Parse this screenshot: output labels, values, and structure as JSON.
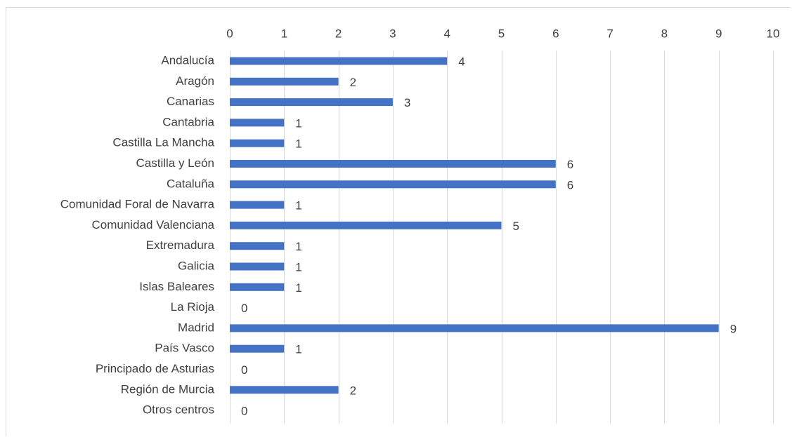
{
  "chart_data": {
    "type": "bar",
    "orientation": "horizontal",
    "title": "",
    "xlabel": "",
    "ylabel": "",
    "xlim": [
      0,
      10
    ],
    "x_ticks": [
      0,
      1,
      2,
      3,
      4,
      5,
      6,
      7,
      8,
      9,
      10
    ],
    "x_axis_position": "top",
    "grid": true,
    "legend": "none",
    "bar_color": "#4472C4",
    "grid_color": "#d9d9d9",
    "text_color": "#404040",
    "categories": [
      "Andalucía",
      "Aragón",
      "Canarias",
      "Cantabria",
      "Castilla La Mancha",
      "Castilla y León",
      "Cataluña",
      "Comunidad Foral de Navarra",
      "Comunidad Valenciana",
      "Extremadura",
      "Galicia",
      "Islas Baleares",
      "La Rioja",
      "Madrid",
      "País Vasco",
      "Principado de Asturias",
      "Región de Murcia",
      "Otros centros"
    ],
    "values": [
      4,
      2,
      3,
      1,
      1,
      6,
      6,
      1,
      5,
      1,
      1,
      1,
      0,
      9,
      1,
      0,
      2,
      0
    ]
  }
}
